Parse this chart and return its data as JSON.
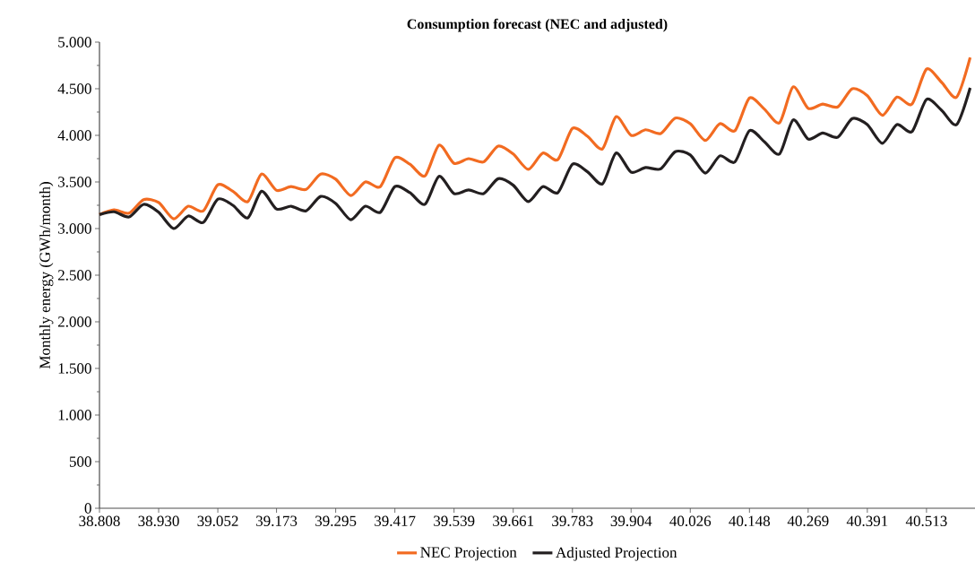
{
  "chart_data": {
    "type": "line",
    "title": "Consumption forecast (NEC and adjusted)",
    "ylabel": "Monthly energy (GWh/month)",
    "x": [
      38808,
      38838,
      38869,
      38899,
      38930,
      38961,
      38991,
      39022,
      39052,
      39083,
      39114,
      39142,
      39173,
      39203,
      39234,
      39264,
      39295,
      39326,
      39356,
      39387,
      39417,
      39448,
      39479,
      39508,
      39539,
      39569,
      39600,
      39630,
      39661,
      39692,
      39722,
      39753,
      39783,
      39814,
      39845,
      39873,
      39904,
      39934,
      39965,
      39995,
      40026,
      40057,
      40087,
      40118,
      40148,
      40179,
      40210,
      40238,
      40269,
      40299,
      40330,
      40360,
      40391,
      40422,
      40452,
      40483,
      40513,
      40544,
      40575,
      40603
    ],
    "series": [
      {
        "name": "NEC Projection",
        "color": "#f26b21",
        "values": [
          3150,
          3200,
          3165,
          3310,
          3280,
          3105,
          3240,
          3190,
          3470,
          3400,
          3290,
          3585,
          3410,
          3450,
          3420,
          3585,
          3530,
          3355,
          3500,
          3450,
          3760,
          3690,
          3565,
          3895,
          3700,
          3750,
          3715,
          3885,
          3800,
          3635,
          3810,
          3740,
          4075,
          3990,
          3855,
          4200,
          4000,
          4060,
          4020,
          4185,
          4125,
          3945,
          4125,
          4050,
          4400,
          4280,
          4135,
          4520,
          4290,
          4335,
          4305,
          4500,
          4425,
          4215,
          4410,
          4335,
          4710,
          4570,
          4410,
          4835
        ]
      },
      {
        "name": "Adjusted Projection",
        "color": "#231f20",
        "values": [
          3150,
          3180,
          3125,
          3260,
          3175,
          3000,
          3135,
          3065,
          3315,
          3250,
          3115,
          3400,
          3210,
          3240,
          3190,
          3345,
          3270,
          3095,
          3240,
          3175,
          3450,
          3385,
          3260,
          3560,
          3375,
          3415,
          3375,
          3535,
          3465,
          3290,
          3450,
          3385,
          3690,
          3610,
          3480,
          3810,
          3605,
          3655,
          3640,
          3825,
          3790,
          3595,
          3780,
          3715,
          4050,
          3930,
          3800,
          4165,
          3960,
          4025,
          3980,
          4180,
          4115,
          3915,
          4115,
          4040,
          4385,
          4270,
          4115,
          4510
        ]
      }
    ],
    "xlim": [
      38808,
      40613
    ],
    "xticks": [
      {
        "value": 38808,
        "label": "38.808"
      },
      {
        "value": 38930,
        "label": "38.930"
      },
      {
        "value": 39052,
        "label": "39.052"
      },
      {
        "value": 39173,
        "label": "39.173"
      },
      {
        "value": 39295,
        "label": "39.295"
      },
      {
        "value": 39417,
        "label": "39.417"
      },
      {
        "value": 39539,
        "label": "39.539"
      },
      {
        "value": 39661,
        "label": "39.661"
      },
      {
        "value": 39783,
        "label": "39.783"
      },
      {
        "value": 39904,
        "label": "39.904"
      },
      {
        "value": 40026,
        "label": "40.026"
      },
      {
        "value": 40148,
        "label": "40.148"
      },
      {
        "value": 40269,
        "label": "40.269"
      },
      {
        "value": 40391,
        "label": "40.391"
      },
      {
        "value": 40513,
        "label": "40.513"
      }
    ],
    "ylim": [
      0,
      5000
    ],
    "yticks": [
      0,
      500,
      {
        "value": 1000,
        "label": "1.000"
      },
      {
        "value": 1500,
        "label": "1.500"
      },
      {
        "value": 2000,
        "label": "2.000"
      },
      {
        "value": 2500,
        "label": "2.500"
      },
      {
        "value": 3000,
        "label": "3.000"
      },
      {
        "value": 3500,
        "label": "3.500"
      },
      {
        "value": 4000,
        "label": "4.000"
      },
      {
        "value": 4500,
        "label": "4.500"
      },
      {
        "value": 5000,
        "label": "5.000"
      }
    ],
    "grid": false,
    "legend": "bottom",
    "marker": "none",
    "line_style": "solid"
  }
}
